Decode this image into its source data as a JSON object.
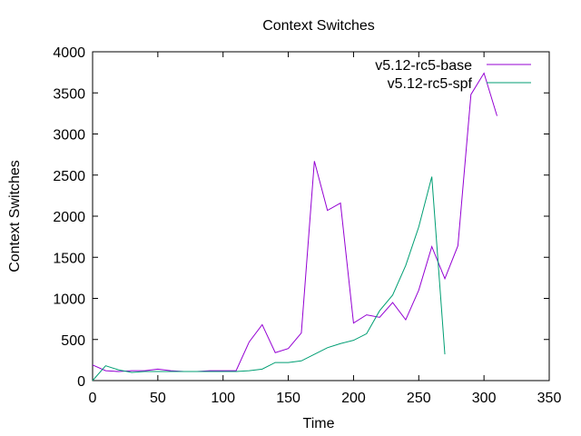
{
  "chart_data": {
    "type": "line",
    "title": "Context Switches",
    "xlabel": "Time",
    "ylabel": "Context Switches",
    "xlim": [
      0,
      350
    ],
    "ylim": [
      0,
      4000
    ],
    "x_ticks": [
      0,
      50,
      100,
      150,
      200,
      250,
      300,
      350
    ],
    "y_ticks": [
      0,
      500,
      1000,
      1500,
      2000,
      2500,
      3000,
      3500,
      4000
    ],
    "grid": false,
    "legend_position": "top-right",
    "series": [
      {
        "name": "v5.12-rc5-base",
        "color": "#9400d3",
        "x": [
          0,
          10,
          20,
          30,
          40,
          50,
          60,
          70,
          80,
          90,
          100,
          110,
          120,
          130,
          140,
          150,
          160,
          170,
          180,
          190,
          200,
          210,
          220,
          230,
          240,
          250,
          260,
          270,
          280,
          290,
          300,
          310
        ],
        "y": [
          190,
          120,
          110,
          120,
          120,
          140,
          120,
          110,
          110,
          120,
          120,
          120,
          470,
          680,
          340,
          390,
          580,
          2670,
          2070,
          2160,
          700,
          800,
          770,
          950,
          740,
          1100,
          1630,
          1240,
          1640,
          3480,
          3740,
          3220
        ]
      },
      {
        "name": "v5.12-rc5-spf",
        "color": "#009e73",
        "x": [
          0,
          10,
          20,
          30,
          40,
          50,
          60,
          70,
          80,
          90,
          100,
          110,
          120,
          130,
          140,
          150,
          160,
          170,
          180,
          190,
          200,
          210,
          220,
          230,
          240,
          250,
          260,
          270
        ],
        "y": [
          0,
          180,
          130,
          100,
          110,
          110,
          110,
          110,
          110,
          110,
          110,
          110,
          120,
          140,
          220,
          220,
          240,
          320,
          400,
          450,
          490,
          570,
          850,
          1040,
          1400,
          1870,
          2480,
          320
        ]
      }
    ]
  }
}
